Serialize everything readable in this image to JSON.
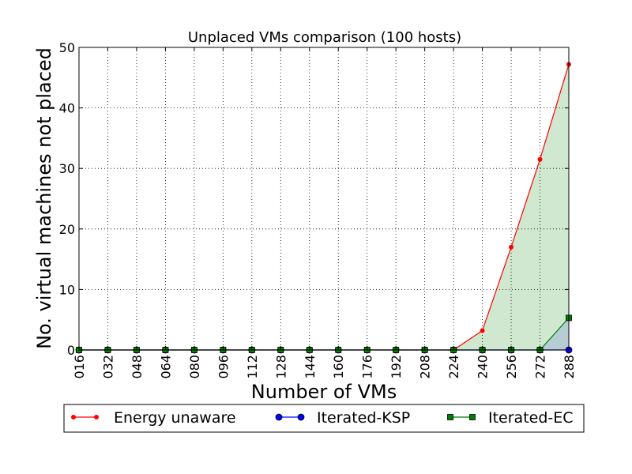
{
  "chart_data": {
    "type": "line",
    "title": "Unplaced VMs comparison (100 hosts)",
    "xlabel": "Number of VMs",
    "ylabel": "No. virtual machines not placed",
    "categories": [
      "016",
      "032",
      "048",
      "064",
      "080",
      "096",
      "112",
      "128",
      "144",
      "160",
      "176",
      "192",
      "208",
      "224",
      "240",
      "256",
      "272",
      "288"
    ],
    "ylim": [
      0,
      50
    ],
    "yticks": [
      0,
      10,
      20,
      30,
      40,
      50
    ],
    "grid": true,
    "legend_position": "bottom",
    "series": [
      {
        "name": "Energy unaware",
        "color": "#ff0000",
        "marker": "dot",
        "fill": "#a8d5a8",
        "values": [
          0,
          0,
          0,
          0,
          0,
          0,
          0,
          0,
          0,
          0,
          0,
          0,
          0,
          0,
          3.2,
          17.0,
          31.5,
          47.2
        ]
      },
      {
        "name": "Iterated-KSP",
        "color": "#0000ff",
        "marker": "circle",
        "fill": "#a4b6d8",
        "values": [
          0,
          0,
          0,
          0,
          0,
          0,
          0,
          0,
          0,
          0,
          0,
          0,
          0,
          0,
          0,
          0,
          0,
          0
        ]
      },
      {
        "name": "Iterated-EC",
        "color": "#007f00",
        "marker": "square",
        "fill": "#a4b6d8",
        "values": [
          0,
          0,
          0,
          0,
          0,
          0,
          0,
          0,
          0,
          0,
          0,
          0,
          0,
          0,
          0,
          0,
          0,
          5.3
        ]
      }
    ]
  }
}
